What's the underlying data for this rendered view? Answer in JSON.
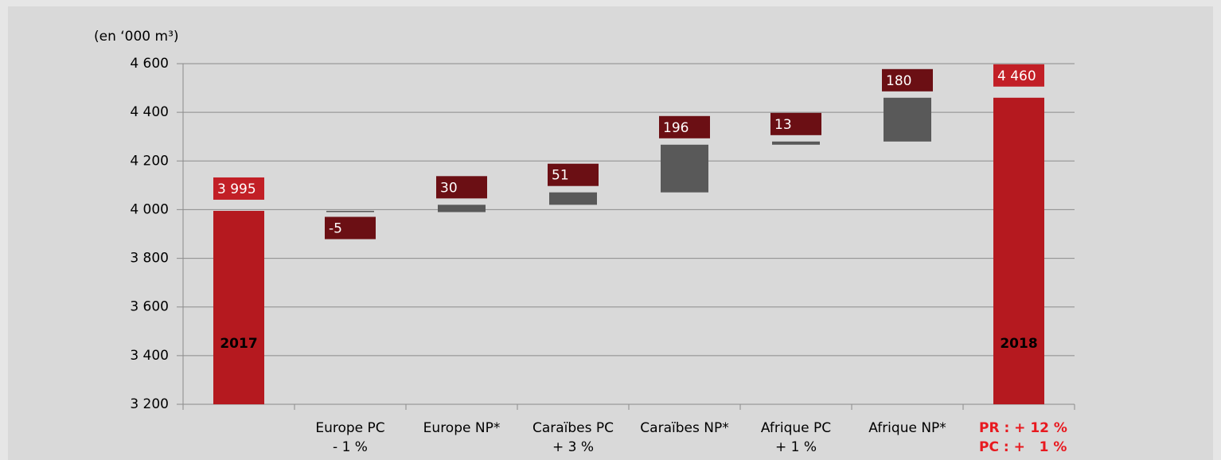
{
  "chart_data": {
    "type": "waterfall",
    "unit_label": "(en ‘000 m³)",
    "categories": [
      null,
      "Europe PC",
      "Europe NP*",
      "Caraïbes PC",
      "Caraïbes NP*",
      "Afrique PC",
      "Afrique NP*",
      null
    ],
    "sublabels": [
      null,
      "- 1 %",
      null,
      "+ 3 %",
      null,
      "+ 1 %",
      null,
      null
    ],
    "bar_labels": [
      "2017",
      null,
      null,
      null,
      null,
      null,
      null,
      "2018"
    ],
    "notes": [
      "PR : + 12 %",
      "PC : +   1 %"
    ],
    "is_total": [
      true,
      false,
      false,
      false,
      false,
      false,
      false,
      true
    ],
    "values": [
      3995,
      -5,
      30,
      51,
      196,
      13,
      180,
      4460
    ],
    "value_labels": [
      "3 995",
      "-5",
      "30",
      "51",
      "196",
      "13",
      "180",
      "4 460"
    ],
    "total_color": "#b5191f",
    "delta_color": "#595959",
    "total_label_color": "#c21f26",
    "delta_label_color": "#6b0f14",
    "note_color": "#e8191f",
    "ylim": [
      3200,
      4600
    ],
    "yticks": [
      {
        "value": 3200,
        "label": "3 200"
      },
      {
        "value": 3400,
        "label": "3 400"
      },
      {
        "value": 3600,
        "label": "3 600"
      },
      {
        "value": 3800,
        "label": "3 800"
      },
      {
        "value": 4000,
        "label": "4 000"
      },
      {
        "value": 4200,
        "label": "4 200"
      },
      {
        "value": 4400,
        "label": "4 400"
      },
      {
        "value": 4600,
        "label": "4 600"
      }
    ],
    "grid": true
  }
}
